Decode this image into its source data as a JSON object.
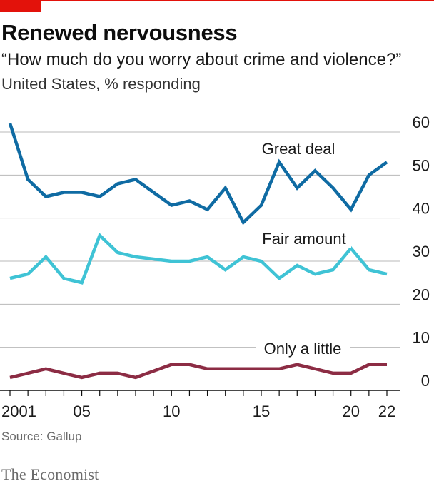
{
  "header": {
    "title": "Renewed nervousness",
    "subtitle": "“How much do you worry about crime and violence?”",
    "unit_label": "United States, % responding"
  },
  "footer": {
    "source": "Source: Gallup",
    "brand": "The Economist"
  },
  "colors": {
    "accent": "#e3120b",
    "great_deal": "#0f6ba3",
    "fair_amount": "#3fc3d5",
    "only_a_little": "#8c2c44",
    "grid": "#b8b8b8"
  },
  "chart_data": {
    "type": "line",
    "x": [
      2001,
      2002,
      2003,
      2004,
      2005,
      2006,
      2007,
      2008,
      2009,
      2010,
      2011,
      2012,
      2013,
      2014,
      2015,
      2016,
      2017,
      2018,
      2019,
      2020,
      2021,
      2022
    ],
    "x_tick_values": [
      2001,
      2005,
      2010,
      2015,
      2020,
      2022
    ],
    "x_tick_labels": [
      "2001",
      "05",
      "10",
      "15",
      "20",
      "22"
    ],
    "xlim": [
      2000.7,
      2022.4
    ],
    "ylim": [
      0,
      60
    ],
    "y_ticks": [
      0,
      10,
      20,
      30,
      40,
      50,
      60
    ],
    "grid": true,
    "series": [
      {
        "name": "Great deal",
        "values": [
          62,
          49,
          45,
          46,
          46,
          45,
          48,
          49,
          46,
          43,
          44,
          42,
          47,
          39,
          43,
          53,
          47,
          51,
          47,
          42,
          50,
          53
        ]
      },
      {
        "name": "Fair amount",
        "values": [
          26,
          27,
          31,
          26,
          25,
          36,
          32,
          31,
          30.5,
          30,
          30,
          31,
          28,
          31,
          30,
          26,
          29,
          27,
          28,
          33,
          28,
          27
        ]
      },
      {
        "name": "Only a little",
        "values": [
          3,
          4,
          5,
          4,
          3,
          4,
          4,
          3,
          4.5,
          6,
          6,
          5,
          5,
          5,
          5,
          5,
          6,
          5,
          4,
          4,
          6,
          6
        ]
      }
    ]
  }
}
